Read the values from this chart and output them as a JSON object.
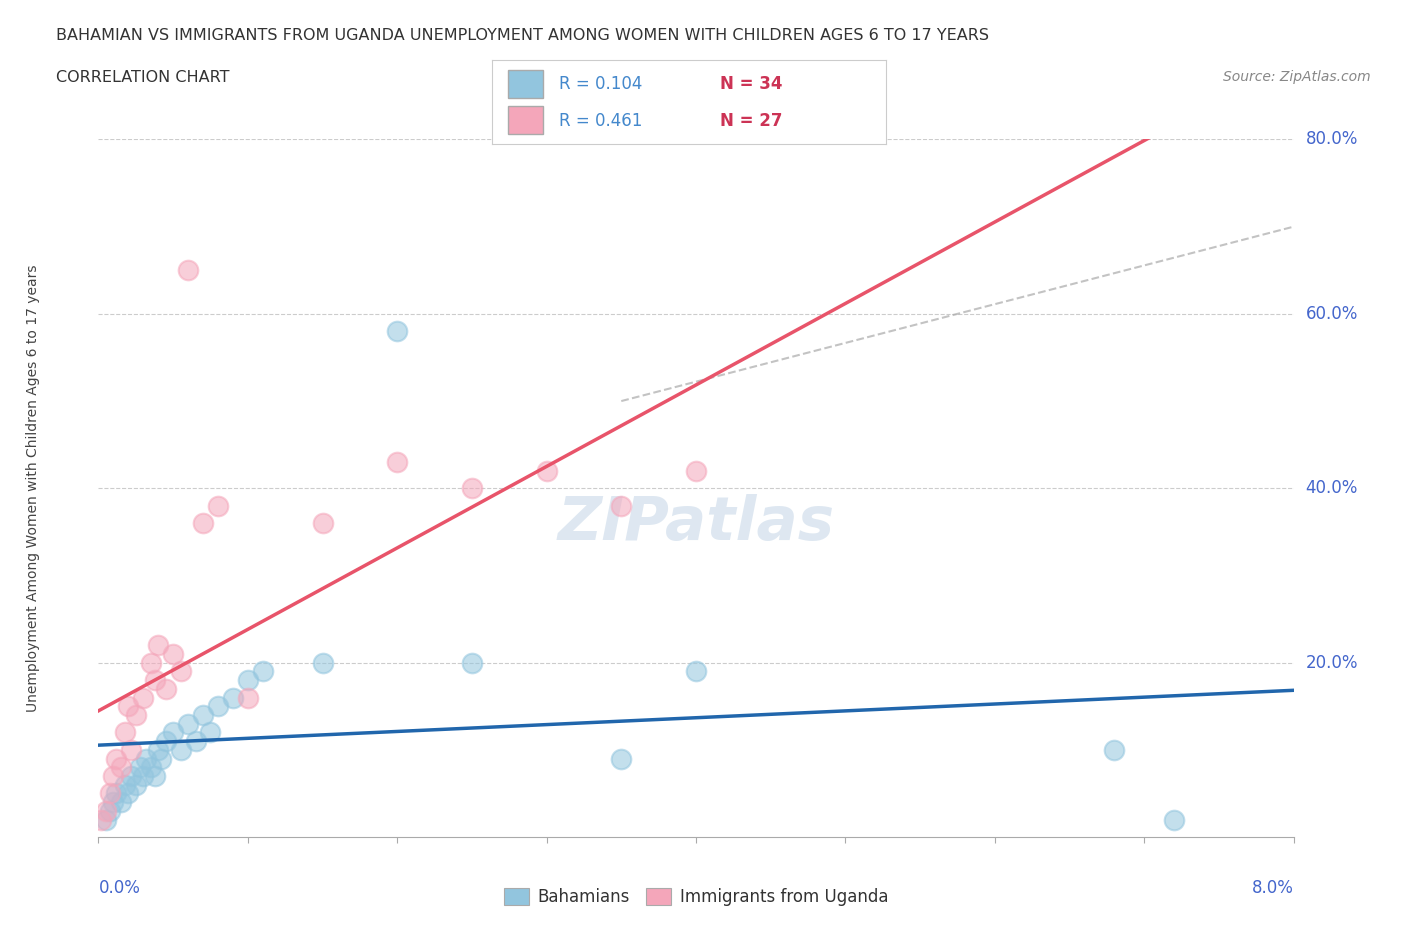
{
  "title_line1": "BAHAMIAN VS IMMIGRANTS FROM UGANDA UNEMPLOYMENT AMONG WOMEN WITH CHILDREN AGES 6 TO 17 YEARS",
  "title_line2": "CORRELATION CHART",
  "source_text": "Source: ZipAtlas.com",
  "xlabel_bottom_left": "0.0%",
  "xlabel_bottom_right": "8.0%",
  "ylabel": "Unemployment Among Women with Children Ages 6 to 17 years",
  "legend_r1": "R = 0.104",
  "legend_n1": "N = 34",
  "legend_r2": "R = 0.461",
  "legend_n2": "N = 27",
  "bahamian_color": "#92c5de",
  "uganda_color": "#f4a6ba",
  "trend_blue": "#2166ac",
  "trend_pink": "#e8546a",
  "watermark": "ZIPatlas",
  "bahamians_label": "Bahamians",
  "uganda_label": "Immigrants from Uganda",
  "r_color": "#4488cc",
  "n_color": "#cc3355",
  "xlim": [
    0,
    8
  ],
  "ylim": [
    0,
    80
  ],
  "yticks": [
    0,
    20,
    40,
    60,
    80
  ],
  "bah_x": [
    0.05,
    0.08,
    0.1,
    0.12,
    0.15,
    0.18,
    0.2,
    0.22,
    0.25,
    0.28,
    0.3,
    0.32,
    0.35,
    0.38,
    0.4,
    0.42,
    0.45,
    0.5,
    0.55,
    0.6,
    0.65,
    0.7,
    0.75,
    0.8,
    0.9,
    1.0,
    1.1,
    1.5,
    2.0,
    2.5,
    3.5,
    4.0,
    6.8,
    7.2
  ],
  "bah_y": [
    2,
    3,
    4,
    5,
    4,
    6,
    5,
    7,
    6,
    8,
    7,
    9,
    8,
    7,
    10,
    9,
    11,
    12,
    10,
    13,
    11,
    14,
    12,
    15,
    16,
    18,
    19,
    20,
    58,
    20,
    9,
    19,
    10,
    2
  ],
  "uga_x": [
    0.02,
    0.05,
    0.08,
    0.1,
    0.12,
    0.15,
    0.18,
    0.2,
    0.22,
    0.25,
    0.3,
    0.35,
    0.38,
    0.4,
    0.45,
    0.5,
    0.55,
    0.6,
    0.7,
    0.8,
    1.0,
    1.5,
    2.0,
    2.5,
    3.0,
    3.5,
    4.0
  ],
  "uga_y": [
    2,
    3,
    5,
    7,
    9,
    8,
    12,
    15,
    10,
    14,
    16,
    20,
    18,
    22,
    17,
    21,
    19,
    65,
    36,
    38,
    16,
    36,
    43,
    40,
    42,
    38,
    42
  ]
}
